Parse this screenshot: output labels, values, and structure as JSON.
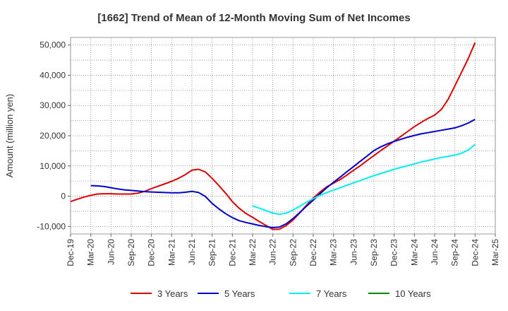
{
  "chart_data": {
    "type": "line",
    "title": "[1662]  Trend of Mean of 12-Month Moving Sum of Net Incomes",
    "ylabel": "Amount (million yen)",
    "xlabel": "",
    "ylim": [
      -12500,
      52500
    ],
    "yticks": [
      -10000,
      0,
      10000,
      20000,
      30000,
      40000,
      50000
    ],
    "ytick_labels": [
      "-10,000",
      "0",
      "10,000",
      "20,000",
      "30,000",
      "40,000",
      "50,000"
    ],
    "xlim": [
      "Dec-19",
      "Mar-25"
    ],
    "x_tick_labels": [
      "Dec-19",
      "Mar-20",
      "Jun-20",
      "Sep-20",
      "Dec-20",
      "Mar-21",
      "Jun-21",
      "Sep-21",
      "Dec-21",
      "Mar-22",
      "Jun-22",
      "Sep-22",
      "Dec-22",
      "Mar-23",
      "Jun-23",
      "Sep-23",
      "Dec-23",
      "Mar-24",
      "Jun-24",
      "Sep-24",
      "Dec-24",
      "Mar-25"
    ],
    "grid": true,
    "legend_position": "bottom",
    "series": [
      {
        "name": "3 Years",
        "color": "#dd0000",
        "x": [
          "Dec-19",
          "Jan-20",
          "Feb-20",
          "Mar-20",
          "Apr-20",
          "May-20",
          "Jun-20",
          "Jul-20",
          "Aug-20",
          "Sep-20",
          "Oct-20",
          "Nov-20",
          "Dec-20",
          "Jan-21",
          "Feb-21",
          "Mar-21",
          "Apr-21",
          "May-21",
          "Jun-21",
          "Jul-21",
          "Aug-21",
          "Sep-21",
          "Oct-21",
          "Nov-21",
          "Dec-21",
          "Jan-22",
          "Feb-22",
          "Mar-22",
          "Apr-22",
          "May-22",
          "Jun-22",
          "Jul-22",
          "Aug-22",
          "Sep-22",
          "Oct-22",
          "Nov-22",
          "Dec-22",
          "Jan-23",
          "Feb-23",
          "Mar-23",
          "Apr-23",
          "May-23",
          "Jun-23",
          "Jul-23",
          "Aug-23",
          "Sep-23",
          "Oct-23",
          "Nov-23",
          "Dec-23",
          "Jan-24",
          "Feb-24",
          "Mar-24",
          "Apr-24",
          "May-24",
          "Jun-24",
          "Jul-24",
          "Aug-24",
          "Sep-24",
          "Oct-24",
          "Nov-24",
          "Dec-24"
        ],
        "y": [
          -1800,
          -1000,
          -300,
          300,
          700,
          800,
          800,
          700,
          700,
          700,
          1000,
          1600,
          2500,
          3300,
          4100,
          4900,
          5900,
          7100,
          8600,
          8900,
          8000,
          5900,
          3500,
          1000,
          -1800,
          -4000,
          -5700,
          -7000,
          -8400,
          -9700,
          -11000,
          -10900,
          -9700,
          -7900,
          -5500,
          -3000,
          -600,
          1400,
          3100,
          4300,
          5500,
          7000,
          8600,
          10100,
          11800,
          13400,
          15100,
          16600,
          18200,
          19800,
          21400,
          23000,
          24400,
          25700,
          26800,
          28700,
          32000,
          36500,
          41000,
          45600,
          50800
        ]
      },
      {
        "name": "5 Years",
        "color": "#0000cc",
        "x": [
          "Mar-20",
          "Apr-20",
          "May-20",
          "Jun-20",
          "Jul-20",
          "Aug-20",
          "Sep-20",
          "Oct-20",
          "Nov-20",
          "Dec-20",
          "Jan-21",
          "Feb-21",
          "Mar-21",
          "Apr-21",
          "May-21",
          "Jun-21",
          "Jul-21",
          "Aug-21",
          "Sep-21",
          "Oct-21",
          "Nov-21",
          "Dec-21",
          "Jan-22",
          "Feb-22",
          "Mar-22",
          "Apr-22",
          "May-22",
          "Jun-22",
          "Jul-22",
          "Aug-22",
          "Sep-22",
          "Oct-22",
          "Nov-22",
          "Dec-22",
          "Jan-23",
          "Feb-23",
          "Mar-23",
          "Apr-23",
          "May-23",
          "Jun-23",
          "Jul-23",
          "Aug-23",
          "Sep-23",
          "Oct-23",
          "Nov-23",
          "Dec-23",
          "Jan-24",
          "Feb-24",
          "Mar-24",
          "Apr-24",
          "May-24",
          "Jun-24",
          "Jul-24",
          "Aug-24",
          "Sep-24",
          "Oct-24",
          "Nov-24",
          "Dec-24"
        ],
        "y": [
          3500,
          3400,
          3200,
          2800,
          2400,
          2100,
          1900,
          1700,
          1500,
          1400,
          1300,
          1200,
          1100,
          1100,
          1300,
          1600,
          1200,
          -100,
          -2400,
          -4200,
          -5800,
          -7100,
          -8100,
          -8700,
          -9200,
          -9700,
          -10100,
          -10400,
          -10200,
          -9100,
          -7400,
          -5400,
          -3300,
          -1300,
          800,
          2800,
          4600,
          6300,
          8100,
          9800,
          11600,
          13300,
          15100,
          16300,
          17300,
          18100,
          18800,
          19500,
          20100,
          20600,
          21000,
          21400,
          21800,
          22200,
          22600,
          23300,
          24200,
          25400
        ]
      },
      {
        "name": "7 Years",
        "color": "#00eeee",
        "x": [
          "Mar-22",
          "Apr-22",
          "May-22",
          "Jun-22",
          "Jul-22",
          "Aug-22",
          "Sep-22",
          "Oct-22",
          "Nov-22",
          "Dec-22",
          "Jan-23",
          "Feb-23",
          "Mar-23",
          "Apr-23",
          "May-23",
          "Jun-23",
          "Jul-23",
          "Aug-23",
          "Sep-23",
          "Oct-23",
          "Nov-23",
          "Dec-23",
          "Jan-24",
          "Feb-24",
          "Mar-24",
          "Apr-24",
          "May-24",
          "Jun-24",
          "Jul-24",
          "Aug-24",
          "Sep-24",
          "Oct-24",
          "Nov-24",
          "Dec-24"
        ],
        "y": [
          -3200,
          -4000,
          -4800,
          -5600,
          -6000,
          -5600,
          -4600,
          -3300,
          -2000,
          -800,
          300,
          1200,
          2000,
          2800,
          3600,
          4400,
          5200,
          6000,
          6800,
          7500,
          8200,
          8900,
          9500,
          10100,
          10700,
          11300,
          11800,
          12300,
          12800,
          13200,
          13600,
          14200,
          15300,
          17100
        ]
      },
      {
        "name": "10 Years",
        "color": "#008800",
        "x": [],
        "y": []
      }
    ]
  }
}
